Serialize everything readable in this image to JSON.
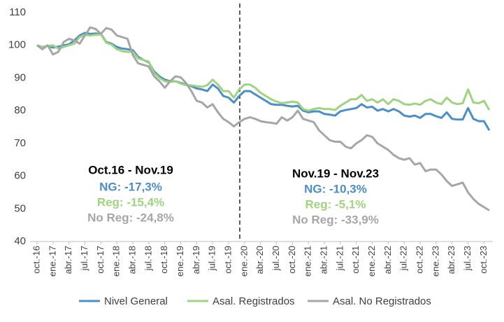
{
  "chart_data": {
    "type": "line",
    "categories": [
      "oct.-16",
      null,
      null,
      "ene.-17",
      null,
      null,
      "abr.-17",
      null,
      null,
      "jul.-17",
      null,
      null,
      "oct.-17",
      null,
      null,
      "ene.-18",
      null,
      null,
      "abr.-18",
      null,
      null,
      "jul.-18",
      null,
      null,
      "oct.-18",
      null,
      null,
      "ene.-19",
      null,
      null,
      "abr.-19",
      null,
      null,
      "jul.-19",
      null,
      null,
      "oct.-19",
      null,
      null,
      "ene.-20",
      null,
      null,
      "abr.-20",
      null,
      null,
      "jul.-20",
      null,
      null,
      "oct.-20",
      null,
      null,
      "ene.-21",
      null,
      null,
      "abr.-21",
      null,
      null,
      "jul.-21",
      null,
      null,
      "oct.-21",
      null,
      null,
      "ene.-22",
      null,
      null,
      "abr.-22",
      null,
      null,
      "jul.-22",
      null,
      null,
      "oct.-22",
      null,
      null,
      "ene.-23",
      null,
      null,
      "abr.-23",
      null,
      null,
      "jul.-23",
      null,
      null,
      "oct.-23",
      null
    ],
    "series": [
      {
        "name": "Nivel General",
        "color": "#4a8fca",
        "values": [
          100,
          99.5,
          99.8,
          99.3,
          99.6,
          100,
          100.3,
          101.5,
          103,
          103.8,
          103.5,
          103.6,
          103.5,
          101,
          100.5,
          99.5,
          99,
          98.8,
          98.5,
          96.5,
          95.5,
          94.8,
          92,
          90.5,
          89.5,
          89,
          89,
          88.5,
          88,
          87.5,
          86.8,
          86.5,
          86,
          88,
          86.8,
          84.5,
          84,
          82.5,
          84.5,
          86,
          86,
          85,
          84,
          83,
          82,
          81.8,
          81.8,
          81.5,
          81.3,
          81.5,
          80,
          79.5,
          79.8,
          79.8,
          79,
          78.8,
          78.5,
          79.8,
          80.2,
          80.5,
          80.8,
          82,
          81,
          81.2,
          80,
          80.5,
          79.8,
          80.5,
          79.8,
          78.5,
          78.2,
          78.5,
          77.8,
          79,
          79,
          78.3,
          77.8,
          79.5,
          77.5,
          77.3,
          77.3,
          80.8,
          77.5,
          76.8,
          76.8,
          74
        ]
      },
      {
        "name": "Asal. Registrados",
        "color": "#9fd47f",
        "values": [
          100,
          99.5,
          99.8,
          100,
          99,
          99.5,
          100,
          100.5,
          102.5,
          103.2,
          103,
          103.2,
          103.3,
          100.8,
          100.2,
          98.8,
          98.2,
          98,
          98,
          96,
          95.5,
          95,
          91.5,
          90,
          89,
          88.8,
          89,
          88.3,
          87.8,
          87.8,
          87.5,
          87.3,
          87.8,
          89.5,
          88,
          86,
          86,
          84,
          86.5,
          88,
          88,
          87,
          85.5,
          84.5,
          83.5,
          82.8,
          82.3,
          82.5,
          82.8,
          82.5,
          80.5,
          80,
          80.5,
          80.8,
          80.5,
          80.5,
          80.2,
          81.5,
          82.5,
          83.5,
          83.5,
          84.8,
          83,
          83.5,
          82.5,
          83.5,
          82,
          83.5,
          83,
          82,
          81.8,
          82.2,
          81.8,
          83,
          83.5,
          82.5,
          82,
          84,
          82.5,
          82,
          82.3,
          86.5,
          82.5,
          82.3,
          83,
          80.2
        ]
      },
      {
        "name": "Asal. No Registrados",
        "color": "#a6a6a6",
        "values": [
          100,
          98.8,
          100,
          97.2,
          98,
          101,
          102,
          101.5,
          100.5,
          103,
          105.5,
          105,
          103.5,
          105.3,
          104.8,
          103,
          102.5,
          102,
          97,
          94.5,
          94,
          93.5,
          90.5,
          89,
          87,
          89,
          90.5,
          90.2,
          88.5,
          86,
          83,
          82.5,
          81,
          82,
          79.5,
          77.5,
          76.5,
          75.2,
          76.5,
          77.5,
          78,
          77.5,
          76.8,
          76.5,
          76.3,
          76,
          78,
          77,
          78,
          80,
          77.5,
          77,
          76.5,
          74,
          72.5,
          71,
          70.5,
          70.5,
          69,
          68.5,
          70,
          71,
          72.5,
          72,
          70,
          69,
          68,
          66.5,
          65.5,
          65,
          65.5,
          63.5,
          64,
          61.5,
          62,
          62,
          60.5,
          58.5,
          57,
          57.5,
          58,
          55,
          53,
          51.5,
          50.5,
          49.5
        ]
      }
    ],
    "ylim": [
      40,
      110
    ],
    "yticks": [
      40,
      50,
      60,
      70,
      80,
      90,
      100,
      110
    ],
    "annotations": [
      {
        "text": "Oct.16 - Nov.19",
        "color": "#000000"
      },
      {
        "text": "NG: -17,3%",
        "color": "#4a8fca"
      },
      {
        "text": "Reg: -15,4%",
        "color": "#9fd47f"
      },
      {
        "text": "No Reg: -24,8%",
        "color": "#a6a6a6"
      },
      {
        "text": "Nov.19 - Nov.23",
        "color": "#000000"
      },
      {
        "text": "NG: -10,3%",
        "color": "#4a8fca"
      },
      {
        "text": "Reg: -5,1%",
        "color": "#9fd47f"
      },
      {
        "text": "No Reg: -33,9%",
        "color": "#a6a6a6"
      }
    ]
  }
}
